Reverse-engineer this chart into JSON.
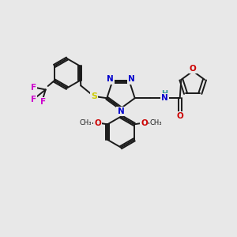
{
  "bg_color": "#e8e8e8",
  "bond_color": "#1a1a1a",
  "bond_lw": 1.4,
  "atom_colors": {
    "N": "#0000cc",
    "S": "#cccc00",
    "O": "#cc0000",
    "F": "#cc00cc",
    "H": "#339999",
    "C": "#1a1a1a"
  },
  "font_size": 7.5
}
